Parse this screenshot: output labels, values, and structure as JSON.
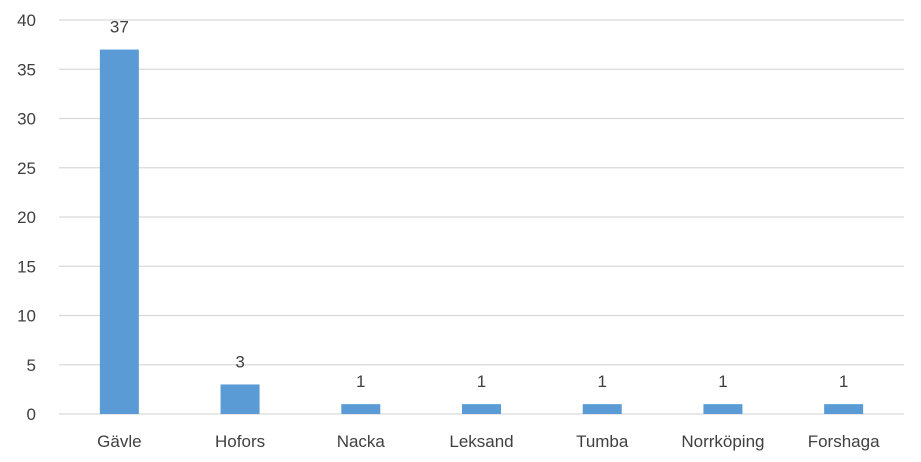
{
  "chart_data": {
    "type": "bar",
    "categories": [
      "Gävle",
      "Hofors",
      "Nacka",
      "Leksand",
      "Tumba",
      "Norrköping",
      "Forshaga"
    ],
    "values": [
      37,
      3,
      1,
      1,
      1,
      1,
      1
    ],
    "data_labels": [
      "37",
      "3",
      "1",
      "1",
      "1",
      "1",
      "1"
    ],
    "title": "",
    "xlabel": "",
    "ylabel": "",
    "ylim": [
      0,
      40
    ],
    "yticks": [
      0,
      5,
      10,
      15,
      20,
      25,
      30,
      35,
      40
    ],
    "grid": true,
    "legend": "none",
    "colors": {
      "bar": "#5b9bd5",
      "grid": "#d9d9d9",
      "text": "#404040"
    }
  }
}
